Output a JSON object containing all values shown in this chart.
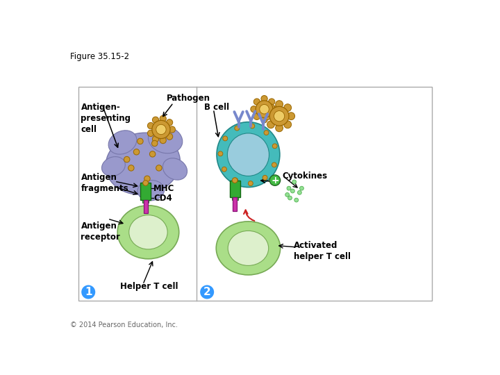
{
  "figure_title": "Figure 35.15-2",
  "copyright": "© 2014 Pearson Education, Inc.",
  "panel1_label": "1",
  "panel2_label": "2",
  "label_color": "#3399ff",
  "bg_color": "#ffffff",
  "apc_color": "#9999cc",
  "apc_edge": "#7777aa",
  "helper_t_outer": "#aade88",
  "helper_t_inner": "#ddf0cc",
  "helper_t_edge": "#77aa55",
  "b_cell_outer": "#44bbbb",
  "b_cell_inner": "#88dddd",
  "b_cell_nucleus": "#99ccdd",
  "b_cell_edge": "#228888",
  "act_t_outer": "#aade88",
  "act_t_inner": "#ddf0cc",
  "act_t_edge": "#77aa55",
  "mhc_color": "#33aa33",
  "mhc_edge": "#116611",
  "cd4_color": "#cc33aa",
  "cd4_edge": "#881177",
  "pathogen_color": "#cc9933",
  "pathogen_inner": "#eecc66",
  "pathogen_edge": "#996600",
  "receptor_color": "#cc9933",
  "cyt_color": "#88dd88",
  "cyt_edge": "#44aa44",
  "plus_color": "#44bb44",
  "text_color": "#000000",
  "box_color": "#aaaaaa",
  "div_color": "#aaaaaa"
}
